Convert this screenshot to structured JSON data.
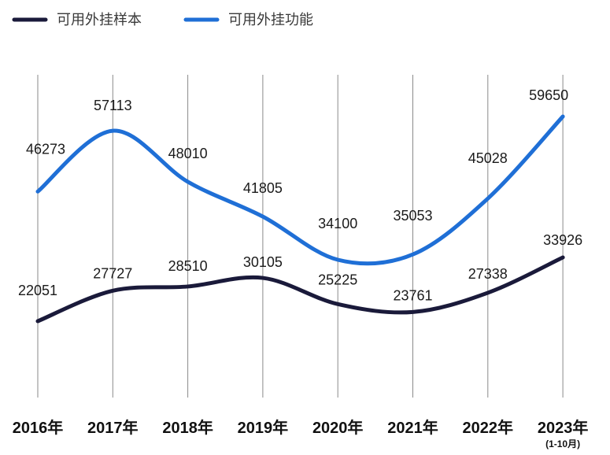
{
  "chart_data": {
    "type": "line",
    "categories": [
      "2016年",
      "2017年",
      "2018年",
      "2019年",
      "2020年",
      "2021年",
      "2022年",
      "2023年"
    ],
    "category_notes": [
      "",
      "",
      "",
      "",
      "",
      "",
      "",
      "(1-10月)"
    ],
    "series": [
      {
        "name": "可用外挂样本",
        "values": [
          22051,
          27727,
          28510,
          30105,
          25225,
          23761,
          27338,
          33926
        ],
        "color": "#1a1a3a"
      },
      {
        "name": "可用外挂功能",
        "values": [
          46273,
          57113,
          48010,
          41805,
          34100,
          35053,
          45028,
          59650
        ],
        "color": "#1f6fd6"
      }
    ],
    "grid": "vertical",
    "legend_position": "top-left",
    "line_style": "smooth"
  }
}
